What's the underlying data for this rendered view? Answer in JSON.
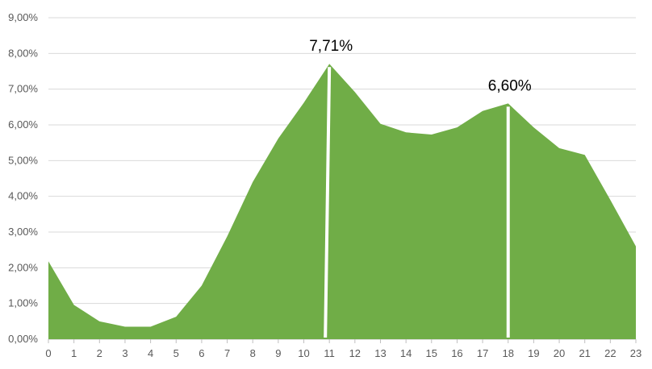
{
  "chart_data": {
    "type": "area",
    "x": [
      "0",
      "1",
      "2",
      "3",
      "4",
      "5",
      "6",
      "7",
      "8",
      "9",
      "10",
      "11",
      "12",
      "13",
      "14",
      "15",
      "16",
      "17",
      "18",
      "19",
      "20",
      "21",
      "22",
      "23"
    ],
    "series": [
      {
        "values": [
          2.18,
          0.96,
          0.5,
          0.35,
          0.35,
          0.63,
          1.5,
          2.88,
          4.4,
          5.62,
          6.62,
          7.71,
          6.92,
          6.03,
          5.79,
          5.73,
          5.93,
          6.39,
          6.6,
          5.93,
          5.35,
          5.16,
          3.9,
          2.6
        ],
        "color": "#70ad47"
      }
    ],
    "ylim": [
      0,
      9
    ],
    "y_ticks": [
      "0,00%",
      "1,00%",
      "2,00%",
      "3,00%",
      "4,00%",
      "5,00%",
      "6,00%",
      "7,00%",
      "8,00%",
      "9,00%"
    ],
    "y_tick_values": [
      0,
      1,
      2,
      3,
      4,
      5,
      6,
      7,
      8,
      9
    ],
    "grid": true,
    "annotations": [
      {
        "x_index": 11,
        "value": 7.71,
        "label": "7,71%"
      },
      {
        "x_index": 18,
        "value": 6.6,
        "label": "6,60%"
      }
    ],
    "title": "",
    "xlabel": "",
    "ylabel": ""
  }
}
